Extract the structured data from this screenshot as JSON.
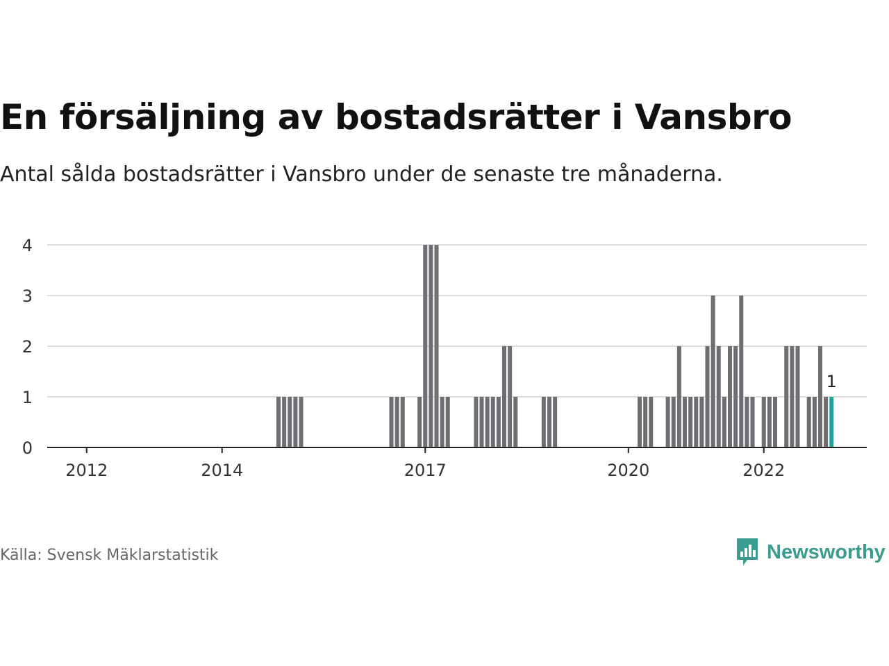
{
  "header": {
    "title": "En försäljning av bostadsrätter i Vansbro",
    "subtitle": "Antal sålda bostadsrätter i Vansbro under de senaste tre månaderna."
  },
  "footer": {
    "source": "Källa: Svensk Mäklarstatistik",
    "brand": "Newsworthy",
    "brand_icon": "bar-chart-speech-bubble-icon"
  },
  "colors": {
    "bar": "#6e6d71",
    "highlight": "#1fa39a",
    "grid": "#dddddd",
    "axis": "#222222",
    "brand": "#3a9b8f"
  },
  "chart_data": {
    "type": "bar",
    "title": "",
    "xlabel": "",
    "ylabel": "",
    "ylim": [
      0,
      4
    ],
    "yticks": [
      "0",
      "1",
      "2",
      "3",
      "4"
    ],
    "xticks": [
      {
        "label": "2012",
        "date": "2012-01"
      },
      {
        "label": "2014",
        "date": "2014-01"
      },
      {
        "label": "2017",
        "date": "2017-01"
      },
      {
        "label": "2020",
        "date": "2020-01"
      },
      {
        "label": "2022",
        "date": "2022-01"
      }
    ],
    "grid": true,
    "annotation": "1",
    "series": [
      {
        "x": [
          "2014-11",
          "2014-12",
          "2015-01",
          "2015-02",
          "2015-03",
          "2016-07",
          "2016-08",
          "2016-09",
          "2016-12",
          "2017-01",
          "2017-02",
          "2017-03",
          "2017-04",
          "2017-05",
          "2017-10",
          "2017-11",
          "2017-12",
          "2018-01",
          "2018-02",
          "2018-03",
          "2018-04",
          "2018-05",
          "2018-10",
          "2018-11",
          "2018-12",
          "2020-03",
          "2020-04",
          "2020-05",
          "2020-08",
          "2020-09",
          "2020-10",
          "2020-11",
          "2020-12",
          "2021-01",
          "2021-02",
          "2021-03",
          "2021-04",
          "2021-05",
          "2021-06",
          "2021-07",
          "2021-08",
          "2021-09",
          "2021-10",
          "2021-11",
          "2022-01",
          "2022-02",
          "2022-03",
          "2022-05",
          "2022-06",
          "2022-07",
          "2022-09",
          "2022-10",
          "2022-11",
          "2022-12",
          "2023-01"
        ],
        "values": [
          1,
          1,
          1,
          1,
          1,
          1,
          1,
          1,
          1,
          4,
          4,
          4,
          1,
          1,
          1,
          1,
          1,
          1,
          1,
          2,
          2,
          1,
          1,
          1,
          1,
          1,
          1,
          1,
          1,
          1,
          2,
          1,
          1,
          1,
          1,
          2,
          3,
          2,
          1,
          2,
          2,
          3,
          1,
          1,
          1,
          1,
          1,
          2,
          2,
          2,
          1,
          1,
          2,
          1,
          1
        ]
      }
    ],
    "highlight_last": true
  }
}
